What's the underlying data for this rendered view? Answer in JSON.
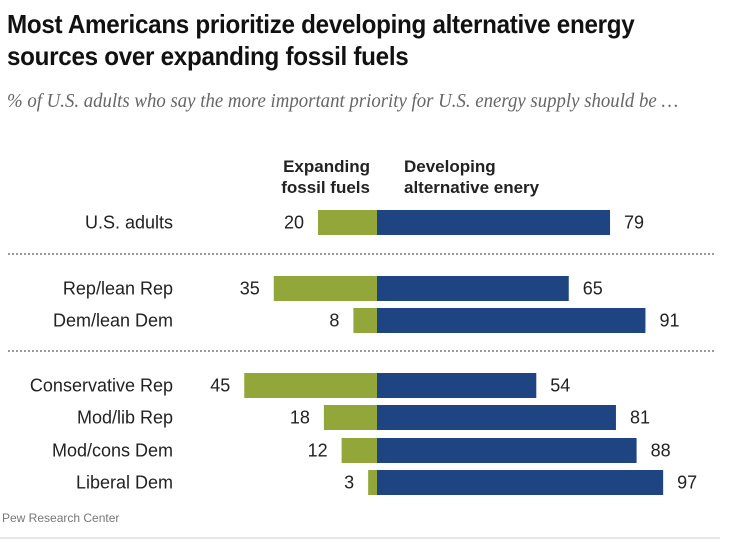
{
  "chart_data": {
    "type": "bar",
    "orientation": "horizontal-diverging",
    "title": "Most Americans prioritize developing alternative energy sources over expanding fossil fuels",
    "subtitle": "% of U.S. adults who say the more important priority for U.S. energy supply should be …",
    "categories": [
      "U.S. adults",
      "Rep/lean Rep",
      "Dem/lean Dem",
      "Conservative Rep",
      "Mod/lib Rep",
      "Mod/cons Dem",
      "Liberal Dem"
    ],
    "groups": [
      [
        0
      ],
      [
        1,
        2
      ],
      [
        3,
        4,
        5,
        6
      ]
    ],
    "series": [
      {
        "name": "Expanding fossil fuels",
        "color": "#93a63a",
        "values": [
          20,
          35,
          8,
          45,
          18,
          12,
          3
        ]
      },
      {
        "name": "Developing alternative enery",
        "color": "#1e4482",
        "values": [
          79,
          65,
          91,
          54,
          81,
          88,
          97
        ]
      }
    ],
    "xlim": [
      -100,
      100
    ],
    "grid": false,
    "source": "Pew Research Center"
  },
  "headers": {
    "left_line1": "Expanding",
    "left_line2": "fossil fuels",
    "right_line1": "Developing",
    "right_line2": "alternative enery"
  }
}
